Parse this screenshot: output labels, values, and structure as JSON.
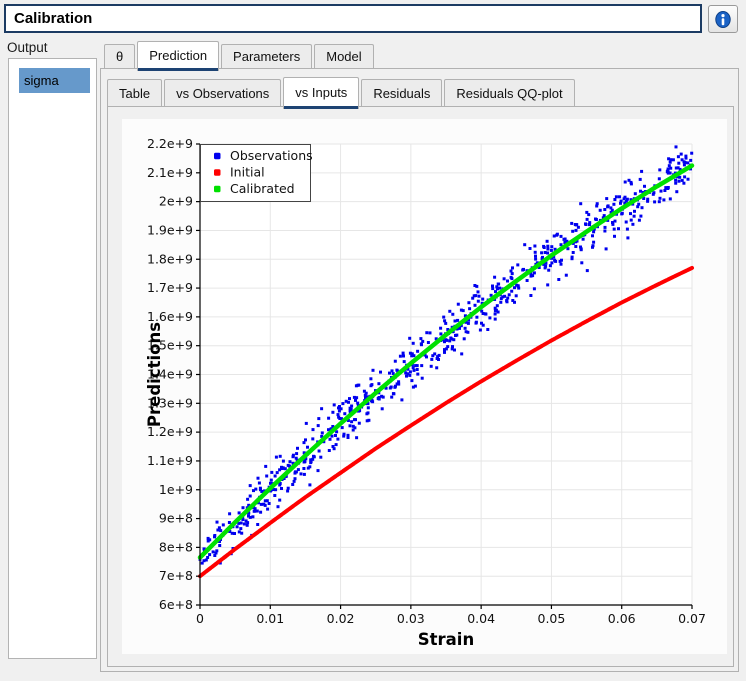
{
  "header": {
    "title_value": "Calibration"
  },
  "output_panel": {
    "label": "Output",
    "items": [
      {
        "label": "sigma",
        "selected": true
      }
    ],
    "selection_color": "#6699cb"
  },
  "main_tabs": [
    {
      "id": "theta",
      "label": "θ",
      "active": false
    },
    {
      "id": "prediction",
      "label": "Prediction",
      "active": true
    },
    {
      "id": "parameters",
      "label": "Parameters",
      "active": false
    },
    {
      "id": "model",
      "label": "Model",
      "active": false
    }
  ],
  "prediction_tabs": [
    {
      "id": "table",
      "label": "Table",
      "active": false
    },
    {
      "id": "vs-observations",
      "label": "vs Observations",
      "active": false
    },
    {
      "id": "vs-inputs",
      "label": "vs Inputs",
      "active": true
    },
    {
      "id": "residuals",
      "label": "Residuals",
      "active": false
    },
    {
      "id": "residuals-qq-plot",
      "label": "Residuals QQ-plot",
      "active": false
    }
  ],
  "colors": {
    "accent": "#1d4373",
    "tab_border": "#b1b1b1",
    "window_bg": "#f0f0f0",
    "grid": "#e6e6e6",
    "observations": "#0000ee",
    "initial": "#ff0000",
    "calibrated": "#00e000"
  },
  "chart_data": {
    "type": "scatter",
    "title": "",
    "xlabel": "Strain",
    "ylabel": "Predictions",
    "xlim": [
      0,
      0.07
    ],
    "ylim": [
      600000000.0,
      2200000000.0
    ],
    "grid": true,
    "x_ticks": {
      "values": [
        0,
        0.01,
        0.02,
        0.03,
        0.04,
        0.05,
        0.06,
        0.07
      ],
      "labels": [
        "0",
        "0.01",
        "0.02",
        "0.03",
        "0.04",
        "0.05",
        "0.06",
        "0.07"
      ]
    },
    "y_ticks": {
      "values": [
        600000000.0,
        700000000.0,
        800000000.0,
        900000000.0,
        1000000000.0,
        1100000000.0,
        1200000000.0,
        1300000000.0,
        1400000000.0,
        1500000000.0,
        1600000000.0,
        1700000000.0,
        1800000000.0,
        1900000000.0,
        2000000000.0,
        2100000000.0,
        2200000000.0
      ],
      "labels": [
        "6e+8",
        "7e+8",
        "8e+8",
        "9e+8",
        "1e+9",
        "1.1e+9",
        "1.2e+9",
        "1.3e+9",
        "1.4e+9",
        "1.5e+9",
        "1.6e+9",
        "1.7e+9",
        "1.8e+9",
        "1.9e+9",
        "2e+9",
        "2.1e+9",
        "2.2e+9"
      ]
    },
    "legend": {
      "position": "top-left",
      "entries": [
        {
          "label": "Observations",
          "color": "#0000ee",
          "marker": "square"
        },
        {
          "label": "Initial",
          "color": "#ff0000",
          "marker": "square"
        },
        {
          "label": "Calibrated",
          "color": "#00e000",
          "marker": "square"
        }
      ]
    },
    "series": [
      {
        "name": "Observations",
        "type": "scatter",
        "color": "#0000ee",
        "marker_size": 3,
        "generated": {
          "count": 740,
          "seed": 20240521,
          "x_min": 0,
          "x_max": 0.07,
          "around": "Calibrated",
          "noise_sigma": 42000000.0,
          "y_max_clip": 2190000000.0
        }
      },
      {
        "name": "Initial",
        "type": "line",
        "color": "#ff0000",
        "width": 4,
        "dash": "6 1.4",
        "x": [
          0,
          0.005,
          0.01,
          0.015,
          0.02,
          0.025,
          0.03,
          0.035,
          0.04,
          0.045,
          0.05,
          0.055,
          0.06,
          0.065,
          0.07
        ],
        "y": [
          700000000.0,
          794000000.0,
          885000000.0,
          974000000.0,
          1059000000.0,
          1143000000.0,
          1223000000.0,
          1301000000.0,
          1376000000.0,
          1448000000.0,
          1518000000.0,
          1585000000.0,
          1650000000.0,
          1711000000.0,
          1770000000.0
        ]
      },
      {
        "name": "Calibrated",
        "type": "line",
        "color": "#00e000",
        "width": 4.5,
        "dash": "",
        "x": [
          0,
          0.005,
          0.01,
          0.015,
          0.02,
          0.025,
          0.03,
          0.035,
          0.04,
          0.045,
          0.05,
          0.055,
          0.06,
          0.065,
          0.07
        ],
        "y": [
          765000000.0,
          887000000.0,
          1005000000.0,
          1119000000.0,
          1230000000.0,
          1336000000.0,
          1439000000.0,
          1538000000.0,
          1634000000.0,
          1725000000.0,
          1813000000.0,
          1896000000.0,
          1976000000.0,
          2053000000.0,
          2125000000.0
        ]
      }
    ]
  }
}
